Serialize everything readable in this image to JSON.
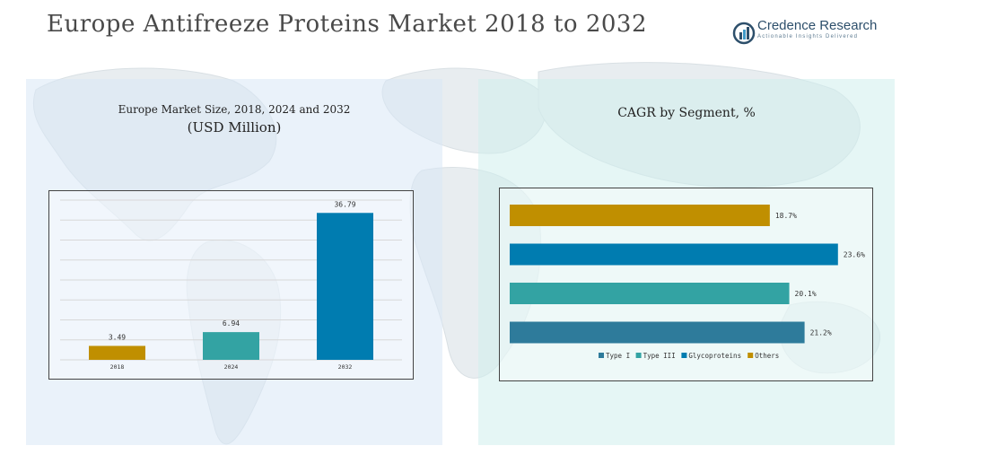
{
  "page": {
    "title": "Europe Antifreeze Proteins Market 2018 to 2032",
    "logo": {
      "name": "Credence Research",
      "tagline": "Actionable Insights Delivered"
    }
  },
  "left_panel": {
    "title_line1": "Europe Market Size, 2018, 2024 and 2032",
    "title_line2": "(USD Million)"
  },
  "right_panel": {
    "title": "CAGR by Segment, %"
  },
  "colors": {
    "gold": "#C08F00",
    "teal": "#33A3A3",
    "blue": "#007CB0",
    "steel": "#2E7B9B",
    "panel_left_bg": "#D8E8F5",
    "panel_right_bg": "#D0EEEC"
  },
  "chart_data": [
    {
      "type": "bar",
      "title": "Europe Market Size, 2018, 2024 and 2032",
      "subtitle": "(USD Million)",
      "categories": [
        "2018",
        "2024",
        "2032"
      ],
      "values": [
        3.49,
        6.94,
        36.79
      ],
      "value_labels": [
        "3.49",
        "6.94",
        "36.79"
      ],
      "colors": [
        "#C08F00",
        "#33A3A3",
        "#007CB0"
      ],
      "ylim": [
        0,
        40
      ],
      "grid": true,
      "legend": "none"
    },
    {
      "type": "bar",
      "orientation": "horizontal",
      "title": "CAGR by Segment, %",
      "categories": [
        "Others",
        "Glycoproteins",
        "Type III",
        "Type I"
      ],
      "values": [
        18.7,
        23.6,
        20.1,
        21.2
      ],
      "value_labels": [
        "18.7%",
        "23.6%",
        "20.1%",
        "21.2%"
      ],
      "colors": [
        "#C08F00",
        "#007CB0",
        "#33A3A3",
        "#2E7B9B"
      ],
      "xlim": [
        0,
        24
      ],
      "legend_position": "bottom",
      "legend": [
        {
          "label": "Type I",
          "color": "#2E7B9B"
        },
        {
          "label": "Type III",
          "color": "#33A3A3"
        },
        {
          "label": "Glycoproteins",
          "color": "#007CB0"
        },
        {
          "label": "Others",
          "color": "#C08F00"
        }
      ]
    }
  ]
}
